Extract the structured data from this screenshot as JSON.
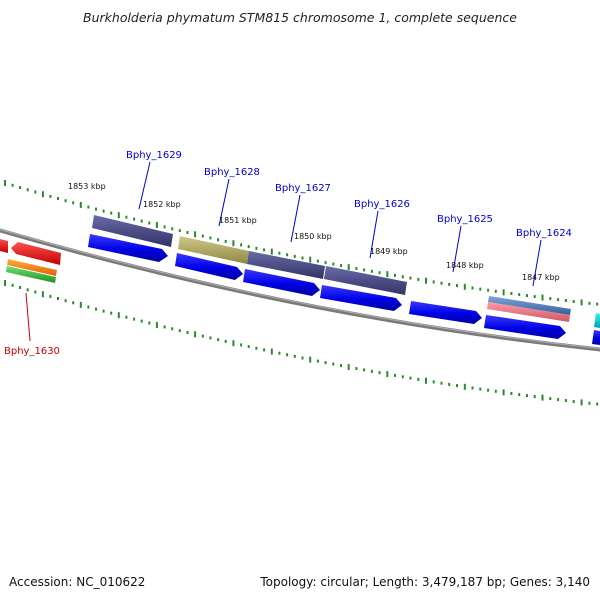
{
  "title": "Burkholderia phymatum STM815 chromosome 1, complete sequence",
  "footer": {
    "accession": "Accession: NC_010622",
    "summary": "Topology: circular; Length: 3,479,187 bp; Genes: 3,140"
  },
  "colors": {
    "backbone": "#808080",
    "tick": "#2a8a2a",
    "gene_label_forward": "#0000cc",
    "gene_label_reverse": "#cc0000",
    "cds": "#0000ee",
    "dark_feature": "#4a4a8a",
    "olive_feature": "#b0a860"
  },
  "kbp_ticks": [
    "1853 kbp",
    "1852 kbp",
    "1851 kbp",
    "1850 kbp",
    "1849 kbp",
    "1848 kbp",
    "1847 kbp"
  ],
  "genes": [
    {
      "label": "Bphy_1629",
      "color": "#0000cc"
    },
    {
      "label": "Bphy_1628",
      "color": "#0000cc"
    },
    {
      "label": "Bphy_1627",
      "color": "#0000cc"
    },
    {
      "label": "Bphy_1626",
      "color": "#0000cc"
    },
    {
      "label": "Bphy_1625",
      "color": "#0000cc"
    },
    {
      "label": "Bphy_1624",
      "color": "#0000cc"
    },
    {
      "label": "Bphy_1630",
      "color": "#cc0000"
    }
  ]
}
